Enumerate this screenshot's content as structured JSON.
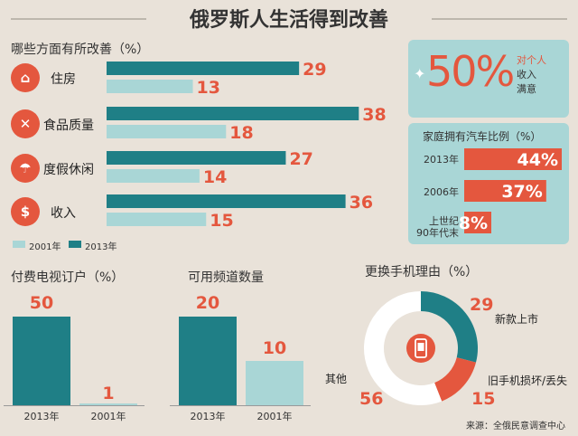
{
  "title": "俄罗斯人生活得到改善",
  "colors": {
    "teal": "#1f7f86",
    "light_teal": "#a9d6d6",
    "red": "#e4573e"
  },
  "improvement": {
    "label": "哪些方面有所改善（%）",
    "items": [
      {
        "icon": "house-icon",
        "glyph": "⌂",
        "label": "住房"
      },
      {
        "icon": "fork-knife-icon",
        "glyph": "✕",
        "label": "食品质量"
      },
      {
        "icon": "umbrella-icon",
        "glyph": "☂",
        "label": "度假休闲"
      },
      {
        "icon": "dollar-icon",
        "glyph": "$",
        "label": "收入"
      }
    ],
    "legend": {
      "y2001": "2001年",
      "y2013": "2013年"
    }
  },
  "satisfaction": {
    "value": "50%",
    "line1": "对个人",
    "line2": "收入",
    "line3": "满意"
  },
  "car": {
    "title": "家庭拥有汽车比例（%）",
    "rows": [
      {
        "year": "2013年",
        "value_text": "44%"
      },
      {
        "year": "2006年",
        "value_text": "37%"
      },
      {
        "year": "上世纪\n90年代末",
        "value_text": "8%"
      }
    ]
  },
  "tv": {
    "label": "付费电视订户（%）",
    "v2013": "50",
    "v2001": "1",
    "y2013": "2013年",
    "y2001": "2001年"
  },
  "channels": {
    "label": "可用频道数量",
    "v2013": "20",
    "v2001": "10",
    "y2013": "2013年",
    "y2001": "2001年"
  },
  "phone": {
    "label": "更换手机理由（%）",
    "new_num": "29",
    "new_label": "新款上市",
    "broken_num": "15",
    "broken_label": "旧手机损坏/丢失",
    "other_num": "56",
    "other_label": "其他",
    "icon": "mobile-phone-icon"
  },
  "source": "来源：全俄民意调查中心",
  "chart_data": [
    {
      "type": "bar",
      "title": "哪些方面有所改善（%）",
      "categories": [
        "住房",
        "食品质量",
        "度假休闲",
        "收入"
      ],
      "series": [
        {
          "name": "2013年",
          "values": [
            29,
            38,
            27,
            36
          ]
        },
        {
          "name": "2001年",
          "values": [
            13,
            18,
            14,
            15
          ]
        }
      ],
      "orientation": "horizontal",
      "xlim": [
        0,
        40
      ],
      "legend": "bottom-left"
    },
    {
      "type": "bar",
      "title": "家庭拥有汽车比例（%）",
      "categories": [
        "2013年",
        "2006年",
        "上世纪90年代末"
      ],
      "values": [
        44,
        37,
        8
      ],
      "orientation": "horizontal",
      "xlim": [
        0,
        44
      ]
    },
    {
      "type": "bar",
      "title": "付费电视订户（%）",
      "categories": [
        "2013年",
        "2001年"
      ],
      "values": [
        50,
        1
      ],
      "ylim": [
        0,
        50
      ]
    },
    {
      "type": "bar",
      "title": "可用频道数量",
      "categories": [
        "2013年",
        "2001年"
      ],
      "values": [
        20,
        10
      ],
      "ylim": [
        0,
        20
      ]
    },
    {
      "type": "pie",
      "title": "更换手机理由（%）",
      "categories": [
        "新款上市",
        "旧手机损坏/丢失",
        "其他"
      ],
      "values": [
        29,
        15,
        56
      ],
      "donut": true
    }
  ]
}
